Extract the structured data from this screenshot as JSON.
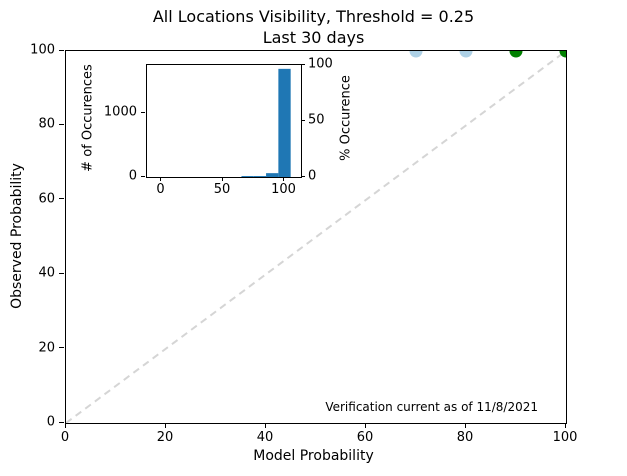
{
  "title": {
    "line1": "All Locations Visibility, Threshold = 0.25",
    "line2": "Last 30 days"
  },
  "annotation": "Verification current as of 11/8/2021",
  "colors": {
    "histogram_bar": "#1f77b4",
    "point_light_blue": "#aed1e6",
    "point_green": "#008000",
    "diagonal_line": "#d5d5d5",
    "axis": "#000000"
  },
  "chart_data": {
    "type": "scatter",
    "title": "All Locations Visibility, Threshold = 0.25",
    "subtitle": "Last 30 days",
    "xlabel": "Model Probability",
    "ylabel": "Observed Probability",
    "xlim": [
      0,
      100
    ],
    "ylim": [
      0,
      100
    ],
    "x_ticks": [
      0,
      20,
      40,
      60,
      80,
      100
    ],
    "y_ticks": [
      0,
      20,
      40,
      60,
      80,
      100
    ],
    "grid": false,
    "diagonal_reference_line": {
      "from": [
        0,
        0
      ],
      "to": [
        100,
        100
      ],
      "style": "dashed",
      "color": "#d5d5d5"
    },
    "points": [
      {
        "x": 70,
        "y": 100,
        "color": "#aed1e6"
      },
      {
        "x": 80,
        "y": 100,
        "color": "#aed1e6"
      },
      {
        "x": 90,
        "y": 100,
        "color": "#008000"
      },
      {
        "x": 100,
        "y": 100,
        "color": "#008000"
      }
    ],
    "annotation_text": "Verification current as of 11/8/2021",
    "inset": {
      "type": "bar",
      "ylabel_left": "# of Occurences",
      "ylabel_right": "% Occurence",
      "x_ticks": [
        0,
        50,
        100
      ],
      "y_ticks_left": [
        0,
        1000
      ],
      "y_ticks_right": [
        0,
        50,
        100
      ],
      "xlim": [
        -11.8,
        113.4
      ],
      "ylim_left": [
        0,
        1750
      ],
      "ylim_right": [
        0,
        100
      ],
      "bar_color": "#1f77b4",
      "bins": [
        {
          "x0": 65,
          "x1": 75,
          "count": 15,
          "percent": 0.8
        },
        {
          "x0": 75,
          "x1": 85,
          "count": 15,
          "percent": 0.8
        },
        {
          "x0": 85,
          "x1": 95,
          "count": 60,
          "percent": 3.4
        },
        {
          "x0": 95,
          "x1": 105,
          "count": 1690,
          "percent": 95.0
        }
      ]
    }
  }
}
